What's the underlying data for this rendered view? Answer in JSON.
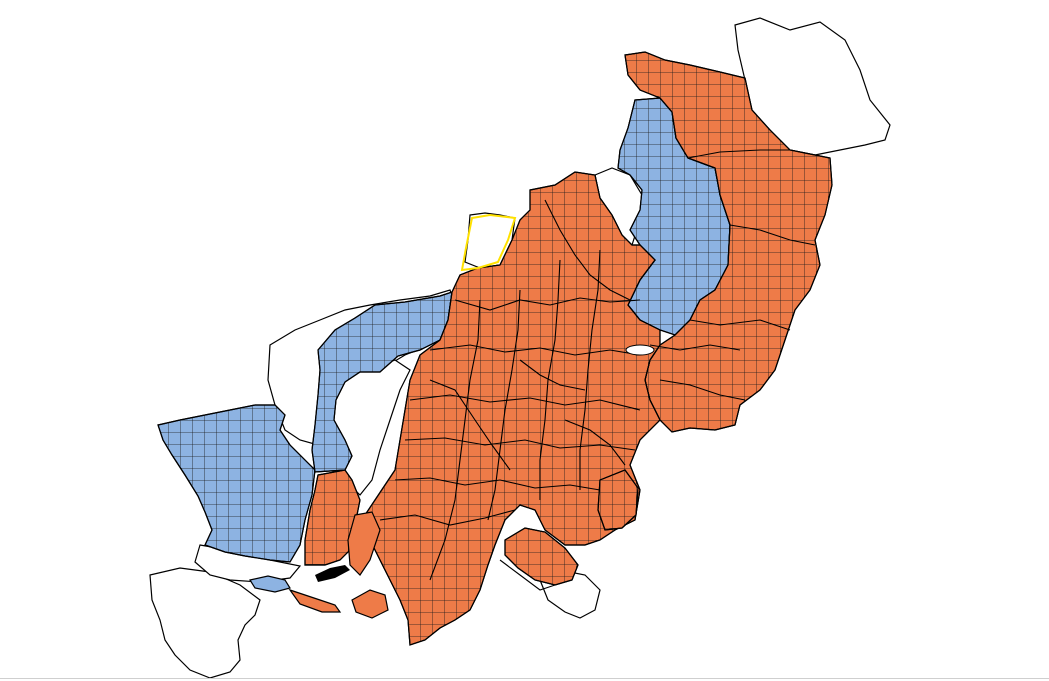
{
  "map": {
    "colors": {
      "highlight": "#ee7b48",
      "secondary": "#8db3e2",
      "background_land": "#ffffff",
      "boundary": "#000000",
      "grid": "#1a1a1a",
      "selection_outline": "#ffe100"
    },
    "legend_visible": false,
    "grid_overlay": true
  }
}
